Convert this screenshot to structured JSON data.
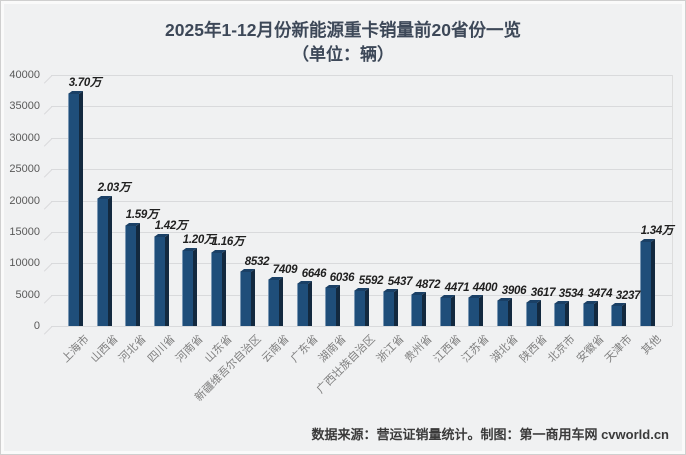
{
  "header": {
    "title": "2025年1-12月份新能源重卡销量前20省份一览",
    "subtitle": "（单位：辆）"
  },
  "chart_data": {
    "type": "bar",
    "title": "2025年1-12月份新能源重卡销量前20省份一览",
    "subtitle": "（单位：辆）",
    "xlabel": "",
    "ylabel": "",
    "ylim": [
      0,
      40000
    ],
    "yticks": [
      0,
      5000,
      10000,
      15000,
      20000,
      25000,
      30000,
      35000,
      40000
    ],
    "grid": true,
    "legend": false,
    "style": "3d-column",
    "categories": [
      "上海市",
      "山西省",
      "河北省",
      "四川省",
      "河南省",
      "山东省",
      "新疆维吾尔自治区",
      "云南省",
      "广东省",
      "湖南省",
      "广西壮族自治区",
      "浙江省",
      "贵州省",
      "江西省",
      "江苏省",
      "湖北省",
      "陕西省",
      "北京市",
      "安徽省",
      "天津市",
      "其他"
    ],
    "values": [
      37000,
      20300,
      15900,
      14200,
      12000,
      11600,
      8532,
      7409,
      6646,
      6036,
      5592,
      5437,
      4872,
      4471,
      4400,
      3906,
      3617,
      3534,
      3474,
      3237,
      13400
    ],
    "bar_labels": [
      "3.70万",
      "2.03万",
      "1.59万",
      "1.42万",
      "1.20万",
      "1.16万",
      "8532",
      "7409",
      "6646",
      "6036",
      "5592",
      "5437",
      "4872",
      "4471",
      "4400",
      "3906",
      "3617",
      "3534",
      "3474",
      "3237",
      "1.34万"
    ]
  },
  "footer": {
    "credit": "数据来源：营运证销量统计。制图：第一商用车网 cvworld.cn"
  },
  "colors": {
    "bar_face": "#1f4e7a",
    "bar_side": "#13293f",
    "bar_top": "#1a4066",
    "title_text": "#3d4858",
    "axis_text": "#595959",
    "category_text": "#7f7f7f",
    "label_text": "#1f1f1f",
    "gridline": "#d9dadc",
    "footer_text": "#3a3a3a"
  }
}
